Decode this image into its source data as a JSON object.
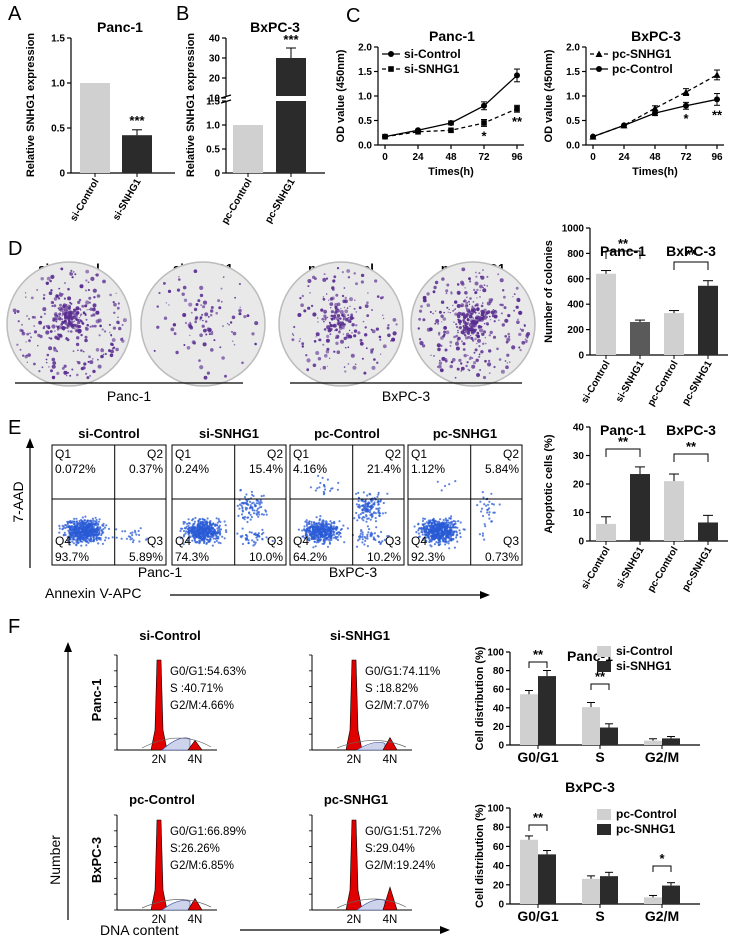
{
  "panel_labels": [
    "A",
    "B",
    "C",
    "D",
    "E",
    "F"
  ],
  "colors": {
    "light": "#d0d0d0",
    "dark": "#2b2b2b",
    "mid": "#5a5a5a",
    "dot_purple": "#5a2d91",
    "flow_blue": "#2a5bd6",
    "hist_red": "#e00000"
  },
  "chart_data": [
    {
      "id": "A",
      "type": "bar",
      "title": "Panc-1",
      "ylabel": "Relative SNHG1 expression",
      "ylim": [
        0,
        1.5
      ],
      "yticks": [
        "0",
        "0.5",
        "1.0",
        "1.5"
      ],
      "categories": [
        "si-Control",
        "si-SNHG1"
      ],
      "values": [
        1.0,
        0.42
      ],
      "errors": [
        0,
        0.06
      ],
      "significance": [
        "",
        "***"
      ]
    },
    {
      "id": "B",
      "type": "bar",
      "title": "BxPC-3",
      "ylabel": "Relative SNHG1 expression",
      "ylim": [
        0,
        40
      ],
      "axis_break": [
        1.5,
        10
      ],
      "yticks": [
        "0",
        "0.5",
        "1.0",
        "1.5",
        "10",
        "20",
        "30",
        "40"
      ],
      "categories": [
        "pc-Control",
        "pc-SNHG1"
      ],
      "values": [
        1.0,
        30
      ],
      "errors": [
        0,
        5
      ],
      "significance": [
        "",
        "***"
      ]
    },
    {
      "id": "C1",
      "type": "line",
      "title": "Panc-1",
      "xlabel": "Times(h)",
      "ylabel": "OD value (450nm)",
      "x": [
        0,
        24,
        48,
        72,
        96
      ],
      "xticks": [
        "0",
        "24",
        "48",
        "72",
        "96"
      ],
      "ylim": [
        0,
        2.0
      ],
      "yticks": [
        "0.0",
        "0.5",
        "1.0",
        "1.5",
        "2.0"
      ],
      "series": [
        {
          "name": "si-Control",
          "values": [
            0.17,
            0.3,
            0.45,
            0.8,
            1.42
          ],
          "errors": [
            0.02,
            0.03,
            0.04,
            0.08,
            0.13
          ],
          "style": "solid",
          "marker": "circle"
        },
        {
          "name": "si-SNHG1",
          "values": [
            0.17,
            0.27,
            0.3,
            0.45,
            0.74
          ],
          "errors": [
            0.02,
            0.03,
            0.03,
            0.07,
            0.07
          ],
          "style": "dashed",
          "marker": "square"
        }
      ],
      "annotations": [
        {
          "x": 72,
          "text": "*"
        },
        {
          "x": 96,
          "text": "**"
        }
      ]
    },
    {
      "id": "C2",
      "type": "line",
      "title": "BxPC-3",
      "xlabel": "Times(h)",
      "ylabel": "OD value (450nm)",
      "x": [
        0,
        24,
        48,
        72,
        96
      ],
      "xticks": [
        "0",
        "24",
        "48",
        "72",
        "96"
      ],
      "ylim": [
        0,
        2.0
      ],
      "yticks": [
        "0.0",
        "0.5",
        "1.0",
        "1.5",
        "2.0"
      ],
      "series": [
        {
          "name": "pc-SNHG1",
          "values": [
            0.17,
            0.4,
            0.75,
            1.08,
            1.43
          ],
          "errors": [
            0.02,
            0.03,
            0.05,
            0.07,
            0.1
          ],
          "style": "dashed",
          "marker": "triangle"
        },
        {
          "name": "pc-Control",
          "values": [
            0.17,
            0.4,
            0.65,
            0.8,
            0.93
          ],
          "errors": [
            0.02,
            0.03,
            0.05,
            0.07,
            0.12
          ],
          "style": "solid",
          "marker": "circle"
        }
      ],
      "annotations": [
        {
          "x": 72,
          "text": "*"
        },
        {
          "x": 96,
          "text": "**"
        }
      ]
    },
    {
      "id": "D",
      "type": "bar",
      "titles": [
        "Panc-1",
        "BxPC-3"
      ],
      "ylabel": "Number of colonies",
      "ylim": [
        0,
        1000
      ],
      "yticks": [
        "0",
        "200",
        "400",
        "600",
        "800",
        "1000"
      ],
      "categories": [
        "si-Control",
        "si-SNHG1",
        "pc-Control",
        "pc-SNHG1"
      ],
      "values": [
        640,
        260,
        330,
        545
      ],
      "errors": [
        25,
        15,
        20,
        40
      ],
      "significance": [
        "**",
        "**"
      ]
    },
    {
      "id": "E",
      "type": "bar",
      "titles": [
        "Panc-1",
        "BxPC-3"
      ],
      "ylabel": "Apoptotic cells (%)",
      "ylim": [
        0,
        40
      ],
      "yticks": [
        "0",
        "10",
        "20",
        "30",
        "40"
      ],
      "categories": [
        "si-Control",
        "si-SNHG1",
        "pc-Control",
        "pc-SNHG1"
      ],
      "values": [
        6,
        23.5,
        21,
        6.5
      ],
      "errors": [
        2.5,
        2.5,
        2.5,
        2.5
      ],
      "significance": [
        "**",
        "**"
      ]
    },
    {
      "id": "F1",
      "type": "bar",
      "title": "Panc-1",
      "ylabel": "Cell distribution (%)",
      "ylim": [
        0,
        100
      ],
      "yticks": [
        "0",
        "20",
        "40",
        "60",
        "80",
        "100"
      ],
      "categories": [
        "G0/G1",
        "S",
        "G2/M"
      ],
      "series": [
        {
          "name": "si-Control",
          "values": [
            54.6,
            40.7,
            4.7
          ],
          "errors": [
            4,
            5,
            2
          ]
        },
        {
          "name": "si-SNHG1",
          "values": [
            74.1,
            18.8,
            7.1
          ],
          "errors": [
            6,
            4,
            2
          ]
        }
      ],
      "significance": [
        "**",
        "**",
        ""
      ]
    },
    {
      "id": "F2",
      "type": "bar",
      "title": "BxPC-3",
      "ylabel": "Cell distribution (%)",
      "ylim": [
        0,
        100
      ],
      "yticks": [
        "0",
        "20",
        "40",
        "60",
        "80",
        "100"
      ],
      "categories": [
        "G0/G1",
        "S",
        "G2/M"
      ],
      "series": [
        {
          "name": "pc-Control",
          "values": [
            66.9,
            26.3,
            6.9
          ],
          "errors": [
            4,
            3,
            2
          ]
        },
        {
          "name": "pc-SNHG1",
          "values": [
            51.7,
            29.0,
            19.2
          ],
          "errors": [
            4,
            4,
            3
          ]
        }
      ],
      "significance": [
        "**",
        "",
        "*"
      ]
    }
  ],
  "colony": {
    "labels": [
      "si-Control",
      "si-SNHG1",
      "pc-Control",
      "pc-SNHG1"
    ],
    "density": [
      0.85,
      0.25,
      0.55,
      0.95
    ],
    "groups": [
      "Panc-1",
      "BxPC-3"
    ]
  },
  "flow": {
    "titles": [
      "si-Control",
      "si-SNHG1",
      "pc-Control",
      "pc-SNHG1"
    ],
    "quadrant_names": [
      "Q1",
      "Q2",
      "Q3",
      "Q4"
    ],
    "values": [
      [
        "0.072%",
        "0.37%",
        "5.89%",
        "93.7%"
      ],
      [
        "0.24%",
        "15.4%",
        "10.0%",
        "74.3%"
      ],
      [
        "4.16%",
        "21.4%",
        "10.2%",
        "64.2%"
      ],
      [
        "1.12%",
        "5.84%",
        "0.73%",
        "92.3%"
      ]
    ],
    "y_label": "7-AAD",
    "x_label": "Annexin V-APC",
    "groups": [
      "Panc-1",
      "BxPC-3"
    ]
  },
  "cycle": {
    "titles": [
      "si-Control",
      "si-SNHG1",
      "pc-Control",
      "pc-SNHG1"
    ],
    "stats": [
      [
        "G0/G1:54.63%",
        "S :40.71%",
        "G2/M:4.66%"
      ],
      [
        "G0/G1:74.11%",
        "S :18.82%",
        "G2/M:7.07%"
      ],
      [
        "G0/G1:66.89%",
        "S:26.26%",
        "G2/M:6.85%"
      ],
      [
        "G0/G1:51.72%",
        "S:29.04%",
        "G2/M:19.24%"
      ]
    ],
    "peak_labels": [
      "2N",
      "4N"
    ],
    "row_labels": [
      "Panc-1",
      "BxPC-3"
    ],
    "y_label": "Number",
    "x_label": "DNA content",
    "g2_height": [
      0.1,
      0.13,
      0.12,
      0.24
    ],
    "s_level": [
      0.12,
      0.07,
      0.09,
      0.1
    ]
  }
}
